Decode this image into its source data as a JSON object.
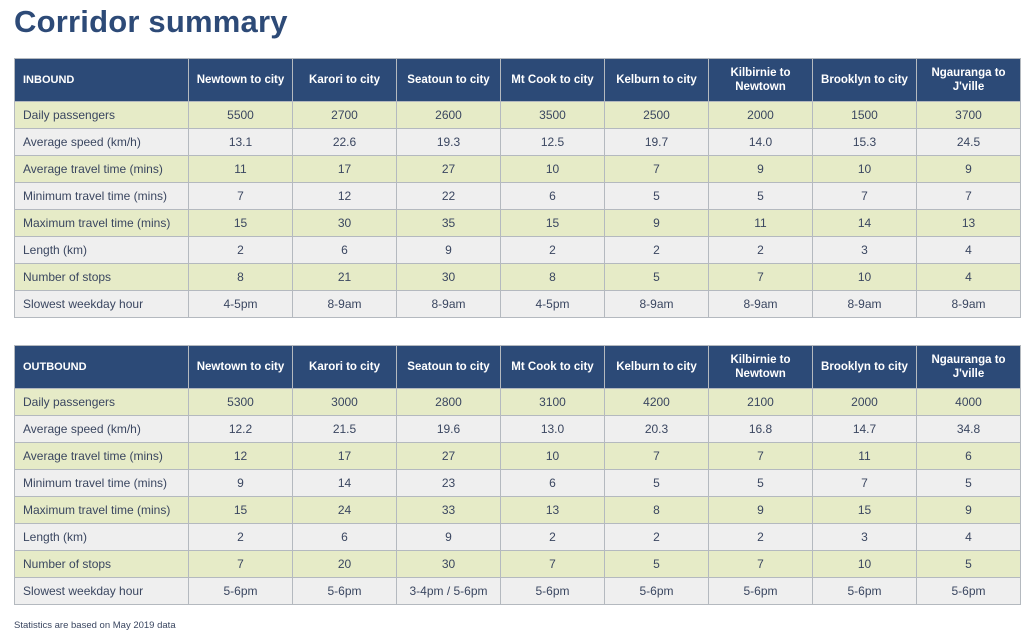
{
  "title": "Corridor summary",
  "columns": [
    "Newtown to city",
    "Karori to city",
    "Seatoun to city",
    "Mt Cook to city",
    "Kelburn to city",
    "Kilbirnie to Newtown",
    "Brooklyn to city",
    "Ngauranga to J'ville"
  ],
  "tables": [
    {
      "direction": "INBOUND",
      "rows": [
        {
          "label": "Daily passengers",
          "values": [
            "5500",
            "2700",
            "2600",
            "3500",
            "2500",
            "2000",
            "1500",
            "3700"
          ]
        },
        {
          "label": "Average speed (km/h)",
          "values": [
            "13.1",
            "22.6",
            "19.3",
            "12.5",
            "19.7",
            "14.0",
            "15.3",
            "24.5"
          ]
        },
        {
          "label": "Average travel time (mins)",
          "values": [
            "11",
            "17",
            "27",
            "10",
            "7",
            "9",
            "10",
            "9"
          ]
        },
        {
          "label": "Minimum travel time (mins)",
          "values": [
            "7",
            "12",
            "22",
            "6",
            "5",
            "5",
            "7",
            "7"
          ]
        },
        {
          "label": "Maximum travel time (mins)",
          "values": [
            "15",
            "30",
            "35",
            "15",
            "9",
            "11",
            "14",
            "13"
          ]
        },
        {
          "label": "Length (km)",
          "values": [
            "2",
            "6",
            "9",
            "2",
            "2",
            "2",
            "3",
            "4"
          ]
        },
        {
          "label": "Number of stops",
          "values": [
            "8",
            "21",
            "30",
            "8",
            "5",
            "7",
            "10",
            "4"
          ]
        },
        {
          "label": "Slowest weekday hour",
          "values": [
            "4-5pm",
            "8-9am",
            "8-9am",
            "4-5pm",
            "8-9am",
            "8-9am",
            "8-9am",
            "8-9am"
          ]
        }
      ]
    },
    {
      "direction": "OUTBOUND",
      "rows": [
        {
          "label": "Daily passengers",
          "values": [
            "5300",
            "3000",
            "2800",
            "3100",
            "4200",
            "2100",
            "2000",
            "4000"
          ]
        },
        {
          "label": "Average speed (km/h)",
          "values": [
            "12.2",
            "21.5",
            "19.6",
            "13.0",
            "20.3",
            "16.8",
            "14.7",
            "34.8"
          ]
        },
        {
          "label": "Average travel time (mins)",
          "values": [
            "12",
            "17",
            "27",
            "10",
            "7",
            "7",
            "11",
            "6"
          ]
        },
        {
          "label": "Minimum travel time (mins)",
          "values": [
            "9",
            "14",
            "23",
            "6",
            "5",
            "5",
            "7",
            "5"
          ]
        },
        {
          "label": "Maximum travel time (mins)",
          "values": [
            "15",
            "24",
            "33",
            "13",
            "8",
            "9",
            "15",
            "9"
          ]
        },
        {
          "label": "Length (km)",
          "values": [
            "2",
            "6",
            "9",
            "2",
            "2",
            "2",
            "3",
            "4"
          ]
        },
        {
          "label": "Number of stops",
          "values": [
            "7",
            "20",
            "30",
            "7",
            "5",
            "7",
            "10",
            "5"
          ]
        },
        {
          "label": "Slowest weekday hour",
          "values": [
            "5-6pm",
            "5-6pm",
            "3-4pm / 5-6pm",
            "5-6pm",
            "5-6pm",
            "5-6pm",
            "5-6pm",
            "5-6pm"
          ]
        }
      ]
    }
  ],
  "footnote": "Statistics are based on May 2019 data",
  "colors": {
    "title": "#2d4a77",
    "header_bg": "#2c4a77",
    "row_green": "#e6ebc7",
    "row_grey": "#efefef"
  }
}
